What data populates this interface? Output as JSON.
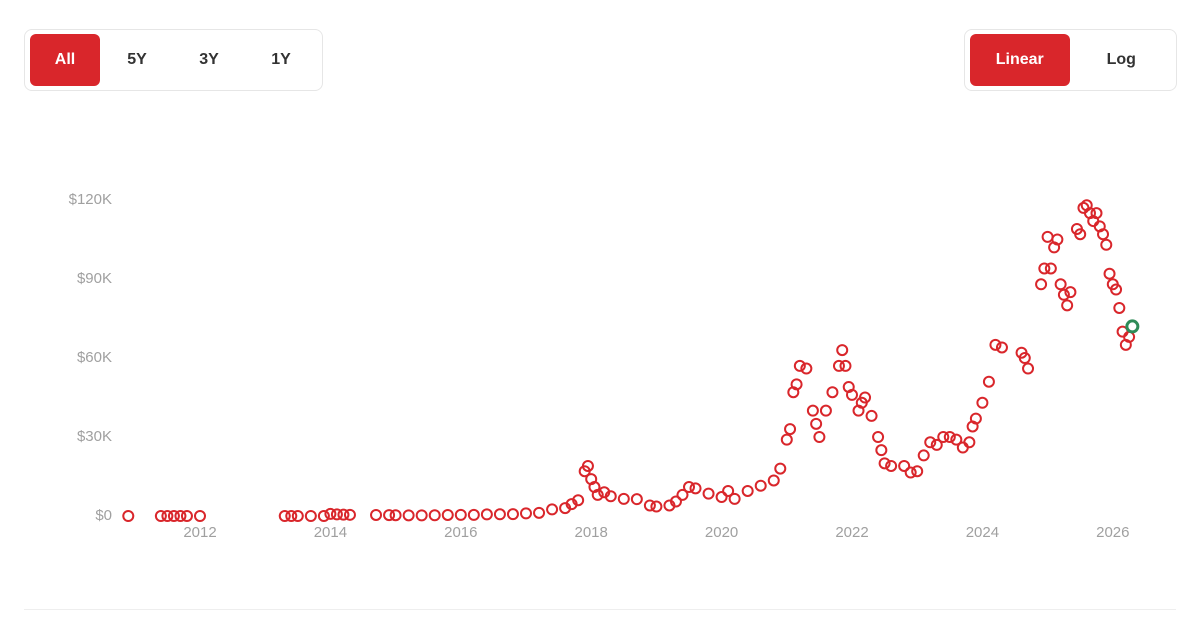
{
  "range_buttons": [
    "All",
    "5Y",
    "3Y",
    "1Y"
  ],
  "scale_buttons": [
    "Linear",
    "Log"
  ],
  "chart_data": {
    "type": "scatter",
    "x": [
      2010.9,
      2011.4,
      2011.5,
      2011.6,
      2011.7,
      2011.8,
      2012.0,
      2013.3,
      2013.4,
      2013.5,
      2013.7,
      2013.9,
      2014.0,
      2014.1,
      2014.2,
      2014.3,
      2014.7,
      2014.9,
      2015.0,
      2015.2,
      2015.4,
      2015.6,
      2015.8,
      2016.0,
      2016.2,
      2016.4,
      2016.6,
      2016.8,
      2017.0,
      2017.2,
      2017.4,
      2017.6,
      2017.7,
      2017.8,
      2017.9,
      2017.95,
      2018.0,
      2018.05,
      2018.1,
      2018.2,
      2018.3,
      2018.5,
      2018.7,
      2018.9,
      2019.0,
      2019.2,
      2019.3,
      2019.4,
      2019.5,
      2019.6,
      2019.8,
      2020.0,
      2020.1,
      2020.2,
      2020.4,
      2020.6,
      2020.8,
      2020.9,
      2021.0,
      2021.05,
      2021.1,
      2021.15,
      2021.2,
      2021.3,
      2021.4,
      2021.45,
      2021.5,
      2021.6,
      2021.7,
      2021.8,
      2021.85,
      2021.9,
      2021.95,
      2022.0,
      2022.1,
      2022.15,
      2022.2,
      2022.3,
      2022.4,
      2022.45,
      2022.5,
      2022.6,
      2022.8,
      2022.9,
      2023.0,
      2023.1,
      2023.2,
      2023.3,
      2023.4,
      2023.5,
      2023.6,
      2023.7,
      2023.8,
      2023.85,
      2023.9,
      2024.0,
      2024.1,
      2024.2,
      2024.3,
      2024.6,
      2024.65,
      2024.7,
      2024.9,
      2024.95,
      2025.0,
      2025.05,
      2025.1,
      2025.15,
      2025.2,
      2025.25,
      2025.3,
      2025.35,
      2025.45,
      2025.5,
      2025.55,
      2025.6,
      2025.65,
      2025.7,
      2025.75,
      2025.8,
      2025.85,
      2025.9,
      2025.95,
      2026.0,
      2026.05,
      2026.1,
      2026.15,
      2026.2,
      2026.25
    ],
    "values": [
      0,
      0,
      0,
      0,
      0,
      0,
      0,
      0,
      0,
      0,
      0,
      0,
      800,
      600,
      500,
      450,
      400,
      350,
      300,
      250,
      240,
      280,
      400,
      430,
      420,
      600,
      650,
      700,
      1000,
      1200,
      2500,
      3000,
      4500,
      6000,
      17000,
      19000,
      14000,
      11000,
      8000,
      9000,
      7500,
      6500,
      6400,
      4000,
      3600,
      4000,
      5500,
      8000,
      11000,
      10500,
      8500,
      7200,
      9500,
      6500,
      9500,
      11500,
      13500,
      18000,
      29000,
      33000,
      47000,
      50000,
      57000,
      56000,
      40000,
      35000,
      30000,
      40000,
      47000,
      57000,
      63000,
      57000,
      49000,
      46000,
      40000,
      43000,
      45000,
      38000,
      30000,
      25000,
      20000,
      19000,
      19000,
      16500,
      17000,
      23000,
      28000,
      27000,
      30000,
      30000,
      29000,
      26000,
      28000,
      34000,
      37000,
      43000,
      51000,
      65000,
      64000,
      62000,
      60000,
      56000,
      88000,
      94000,
      106000,
      94000,
      102000,
      105000,
      88000,
      84000,
      80000,
      85000,
      109000,
      107000,
      117000,
      118000,
      115000,
      112000,
      115000,
      110000,
      107000,
      103000,
      92000,
      88000,
      86000,
      79000,
      70000,
      65000,
      68000
    ],
    "color": "#d9262b",
    "latest": {
      "x": 2026.3,
      "value": 72000,
      "color": "#2e8b57"
    },
    "xlim": [
      2010.7,
      2026.5
    ],
    "xticks": [
      2012,
      2014,
      2016,
      2018,
      2020,
      2022,
      2024,
      2026
    ],
    "ylim": [
      0,
      130000
    ],
    "yticks": [
      {
        "value": 0,
        "label": "$0"
      },
      {
        "value": 30000,
        "label": "$30K"
      },
      {
        "value": 60000,
        "label": "$60K"
      },
      {
        "value": 90000,
        "label": "$90K"
      },
      {
        "value": 120000,
        "label": "$120K"
      }
    ],
    "grid": false
  }
}
